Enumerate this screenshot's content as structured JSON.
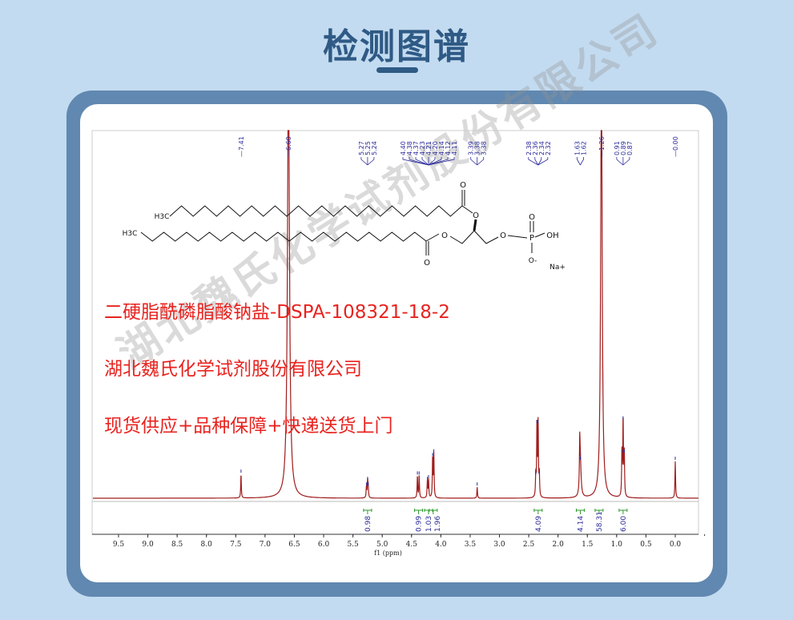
{
  "header": {
    "title": "检测图谱"
  },
  "texts": {
    "compound": "二硬脂酰磷脂酸钠盐-DSPA-108321-18-2",
    "company": "湖北魏氏化学试剂股份有限公司",
    "slogan": "现货供应+品种保障+快递送货上门",
    "watermark": "湖北魏氏化学试剂股份有限公司"
  },
  "structure_labels": {
    "ch3": "H3C",
    "o": "O",
    "p": "P",
    "oh": "OH",
    "ominus": "O-",
    "na": "Na+"
  },
  "chart_data": {
    "type": "line",
    "title": "",
    "xlabel": "f1 (ppm)",
    "xlim": [
      10.0,
      -0.4
    ],
    "x_ticks": [
      "9.5",
      "9.0",
      "8.5",
      "8.0",
      "7.5",
      "7.0",
      "6.5",
      "6.0",
      "5.5",
      "5.0",
      "4.5",
      "4.0",
      "3.5",
      "3.0",
      "2.5",
      "2.0",
      "1.5",
      "1.0",
      "0.5",
      "0.0"
    ],
    "line_color": "#a01c1c",
    "label_color": "#2b2b9a",
    "integral_color": "#2e9a2e",
    "peak_label_groups": [
      [
        "7.41"
      ],
      [
        "6.60"
      ],
      [
        "5.27",
        "5.25",
        "5.24"
      ],
      [
        "4.40",
        "4.38",
        "4.37",
        "4.23",
        "4.21",
        "4.20",
        "4.14",
        "4.12",
        "4.11"
      ],
      [
        "3.39",
        "3.38",
        "3.38"
      ],
      [
        "2.38",
        "2.36",
        "2.34",
        "2.32"
      ],
      [
        "1.63",
        "1.62"
      ],
      [
        "1.26"
      ],
      [
        "0.91",
        "0.89",
        "0.87"
      ],
      [
        "0.00"
      ]
    ],
    "peaks": [
      {
        "ppm": 7.41,
        "intensity": 0.065
      },
      {
        "ppm": 6.6,
        "intensity": 1.2,
        "width": 0.02
      },
      {
        "ppm": 5.27,
        "intensity": 0.03
      },
      {
        "ppm": 5.25,
        "intensity": 0.045
      },
      {
        "ppm": 5.24,
        "intensity": 0.03
      },
      {
        "ppm": 4.4,
        "intensity": 0.06
      },
      {
        "ppm": 4.37,
        "intensity": 0.06
      },
      {
        "ppm": 4.23,
        "intensity": 0.045
      },
      {
        "ppm": 4.21,
        "intensity": 0.05
      },
      {
        "ppm": 4.14,
        "intensity": 0.11
      },
      {
        "ppm": 4.12,
        "intensity": 0.12
      },
      {
        "ppm": 3.38,
        "intensity": 0.03
      },
      {
        "ppm": 2.38,
        "intensity": 0.06
      },
      {
        "ppm": 2.36,
        "intensity": 0.2
      },
      {
        "ppm": 2.34,
        "intensity": 0.2
      },
      {
        "ppm": 2.32,
        "intensity": 0.06
      },
      {
        "ppm": 1.63,
        "intensity": 0.11
      },
      {
        "ppm": 1.62,
        "intensity": 0.1,
        "width": 0.015
      },
      {
        "ppm": 1.26,
        "intensity": 1.2,
        "width": 0.015
      },
      {
        "ppm": 0.91,
        "intensity": 0.12
      },
      {
        "ppm": 0.89,
        "intensity": 0.21
      },
      {
        "ppm": 0.87,
        "intensity": 0.12
      },
      {
        "ppm": 0.0,
        "intensity": 0.1
      }
    ],
    "integrals": [
      {
        "ppm": 5.25,
        "value": "0.98"
      },
      {
        "ppm": 4.38,
        "value": "0.99"
      },
      {
        "ppm": 4.21,
        "value": "1.03"
      },
      {
        "ppm": 4.13,
        "value": "1.96"
      },
      {
        "ppm": 2.34,
        "value": "4.09"
      },
      {
        "ppm": 1.62,
        "value": "4.14"
      },
      {
        "ppm": 1.3,
        "value": "58.31"
      },
      {
        "ppm": 0.89,
        "value": "6.00"
      }
    ]
  }
}
